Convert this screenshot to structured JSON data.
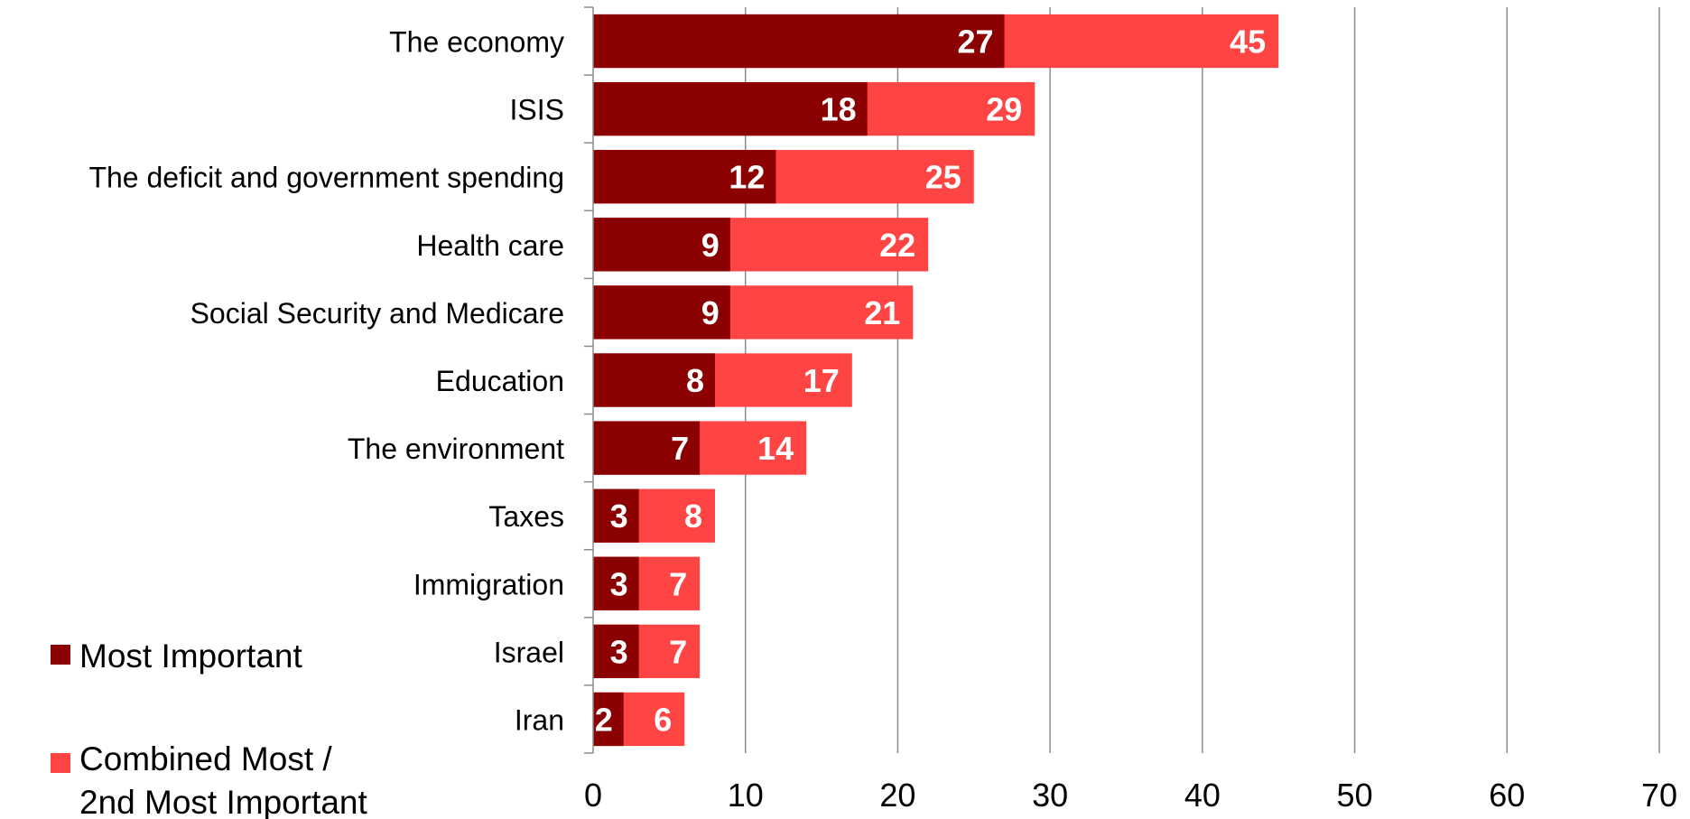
{
  "chart_data": {
    "type": "bar",
    "orientation": "horizontal",
    "stacked": true,
    "categories": [
      "The economy",
      "ISIS",
      "The deficit and government spending",
      "Health care",
      "Social Security and Medicare",
      "Education",
      "The environment",
      "Taxes",
      "Immigration",
      "Israel",
      "Iran"
    ],
    "series": [
      {
        "name": "Most Important",
        "color": "#8b0000",
        "values": [
          27,
          18,
          12,
          9,
          9,
          8,
          7,
          3,
          3,
          3,
          2
        ],
        "labels": [
          "27",
          "18",
          "12",
          "9",
          "9",
          "8",
          "7",
          "3",
          "3",
          "3",
          "2"
        ]
      },
      {
        "name": "Combined Most / 2nd Most Important",
        "color": "#ff4444",
        "values": [
          45,
          29,
          25,
          22,
          21,
          17,
          14,
          8,
          7,
          7,
          6
        ],
        "labels": [
          "45",
          "29",
          "25",
          "22",
          "21",
          "17",
          "14",
          "8",
          "7",
          "7",
          "6"
        ]
      }
    ],
    "xlim": [
      0,
      70
    ],
    "xticks": [
      "0",
      "10",
      "20",
      "30",
      "40",
      "50",
      "60",
      "70"
    ],
    "grid": true,
    "legend": {
      "placement": "bottom-left",
      "entries": [
        {
          "lines": [
            "Most Important"
          ],
          "color": "#8b0000"
        },
        {
          "lines": [
            "Combined Most /",
            "2nd Most Important"
          ],
          "color": "#ff4444"
        }
      ]
    }
  }
}
